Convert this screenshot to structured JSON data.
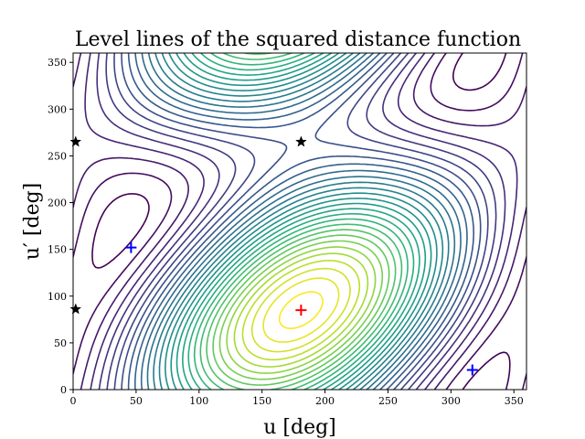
{
  "chart_data": {
    "type": "contour",
    "title": "Level lines of the squared distance function",
    "xlabel": "u [deg]",
    "ylabel": "u′ [deg]",
    "xlim": [
      0,
      360
    ],
    "ylim": [
      0,
      360
    ],
    "xticks": [
      0,
      50,
      100,
      150,
      200,
      250,
      300,
      350
    ],
    "yticks": [
      0,
      50,
      100,
      150,
      200,
      250,
      300,
      350
    ],
    "grid": false,
    "colormap": "viridis",
    "contour_level_count": 30,
    "minimum": {
      "x": 181,
      "y": 85
    },
    "markers": [
      {
        "marker": "plus",
        "color": "#ff0000",
        "x": 181,
        "y": 85
      },
      {
        "marker": "star",
        "color": "#000000",
        "x": 181,
        "y": 265
      },
      {
        "marker": "star",
        "color": "#000000",
        "x": 2,
        "y": 265
      },
      {
        "marker": "star",
        "color": "#000000",
        "x": 2,
        "y": 86
      },
      {
        "marker": "plus",
        "color": "#0000ff",
        "x": 46,
        "y": 152
      },
      {
        "marker": "plus",
        "color": "#0000ff",
        "x": 317,
        "y": 21
      }
    ]
  }
}
